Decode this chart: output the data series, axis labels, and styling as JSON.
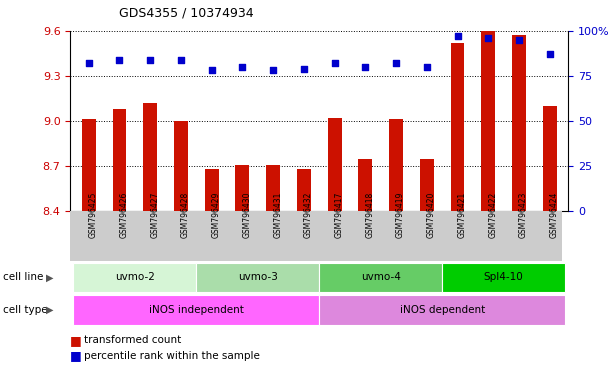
{
  "title": "GDS4355 / 10374934",
  "samples": [
    "GSM796425",
    "GSM796426",
    "GSM796427",
    "GSM796428",
    "GSM796429",
    "GSM796430",
    "GSM796431",
    "GSM796432",
    "GSM796417",
    "GSM796418",
    "GSM796419",
    "GSM796420",
    "GSM796421",
    "GSM796422",
    "GSM796423",
    "GSM796424"
  ],
  "transformed_counts": [
    9.01,
    9.08,
    9.12,
    9.0,
    8.68,
    8.71,
    8.71,
    8.68,
    9.02,
    8.75,
    9.01,
    8.75,
    9.52,
    9.6,
    9.57,
    9.1
  ],
  "percentile_ranks": [
    82,
    84,
    84,
    84,
    78,
    80,
    78,
    79,
    82,
    80,
    82,
    80,
    97,
    96,
    95,
    87
  ],
  "ylim_left": [
    8.4,
    9.6
  ],
  "ylim_right": [
    0,
    100
  ],
  "yticks_left": [
    8.4,
    8.7,
    9.0,
    9.3,
    9.6
  ],
  "yticks_right": [
    0,
    25,
    50,
    75,
    100
  ],
  "cell_lines": [
    {
      "label": "uvmo-2",
      "start": 0,
      "end": 4,
      "color": "#d6f5d6"
    },
    {
      "label": "uvmo-3",
      "start": 4,
      "end": 8,
      "color": "#aaddaa"
    },
    {
      "label": "uvmo-4",
      "start": 8,
      "end": 12,
      "color": "#66cc66"
    },
    {
      "label": "Spl4-10",
      "start": 12,
      "end": 16,
      "color": "#00cc00"
    }
  ],
  "cell_types": [
    {
      "label": "iNOS independent",
      "start": 0,
      "end": 8,
      "color": "#ff66ff"
    },
    {
      "label": "iNOS dependent",
      "start": 8,
      "end": 16,
      "color": "#dd88dd"
    }
  ],
  "bar_color": "#cc1100",
  "dot_color": "#0000cc",
  "bar_bottom": 8.4,
  "axis_color_left": "#cc0000",
  "axis_color_right": "#0000cc",
  "legend_items": [
    {
      "label": "transformed count",
      "color": "#cc1100"
    },
    {
      "label": "percentile rank within the sample",
      "color": "#0000cc"
    }
  ],
  "sample_bg_color": "#cccccc",
  "arrow_color": "#555555"
}
